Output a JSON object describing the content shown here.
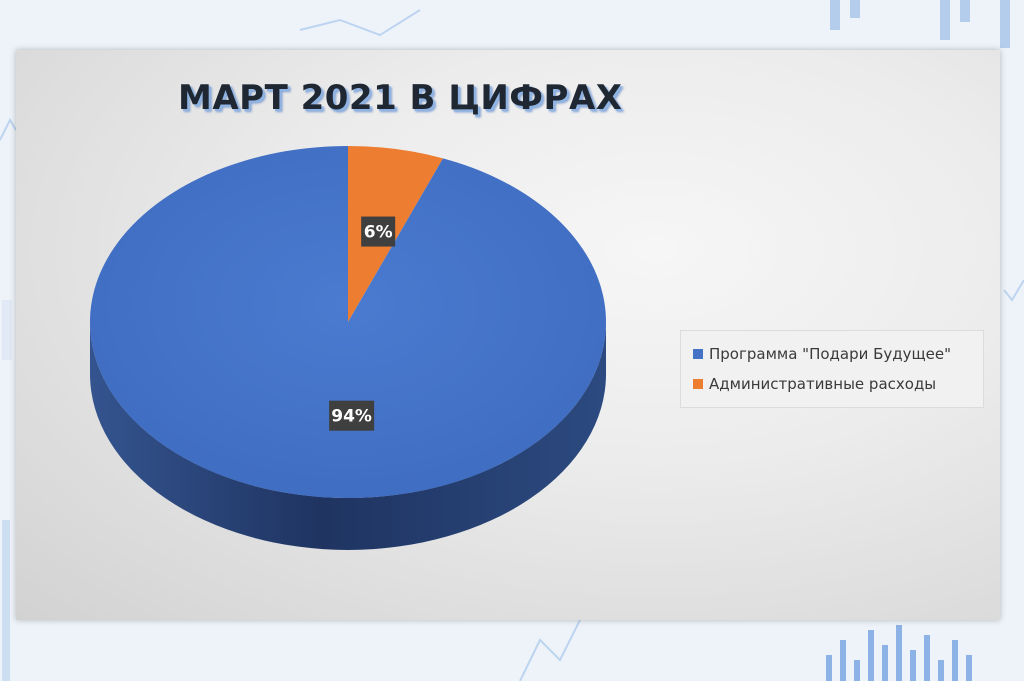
{
  "chart_data": {
    "type": "pie",
    "title": "МАРТ 2021 В ЦИФРАХ",
    "categories": [
      "Программа \"Подари Будущее\"",
      "Административные расходы"
    ],
    "values": [
      94,
      6
    ],
    "labels": [
      "94%",
      "6%"
    ],
    "colors": [
      "#4472c4",
      "#ed7d31"
    ],
    "legend": "right",
    "style": "3d"
  }
}
